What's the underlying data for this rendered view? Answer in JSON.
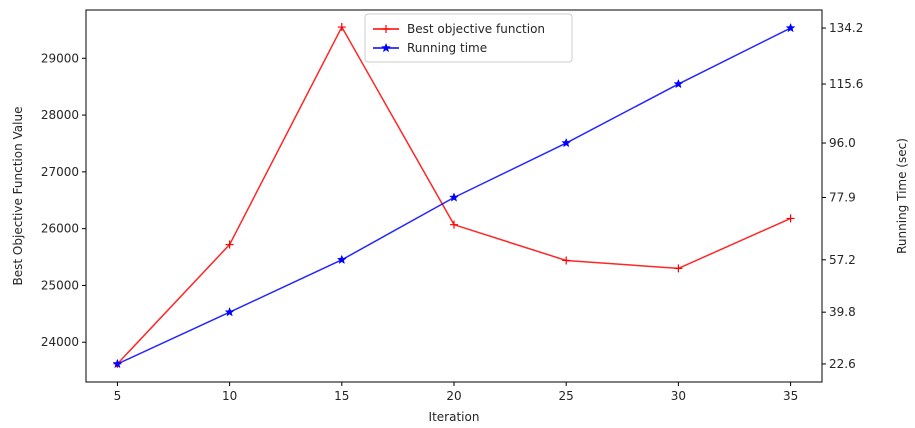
{
  "chart_data": {
    "type": "line",
    "xlabel": "Iteration",
    "ylabel_left": "Best Objective Function Value",
    "ylabel_right": "Running Time (sec)",
    "x": [
      5,
      10,
      15,
      20,
      25,
      30,
      35
    ],
    "xlim": [
      3.6,
      36.4
    ],
    "xticks": [
      "5",
      "10",
      "15",
      "20",
      "25",
      "30",
      "35"
    ],
    "ylim_left": [
      23300,
      29850
    ],
    "yticks_left": [
      24000,
      25000,
      26000,
      27000,
      28000,
      29000
    ],
    "ylim_right": [
      16.6,
      140.2
    ],
    "yticks_right": [
      "22.6",
      "39.8",
      "57.2",
      "77.9",
      "96.0",
      "115.6",
      "134.2"
    ],
    "yticks_right_values": [
      22.6,
      39.8,
      57.2,
      77.9,
      96.0,
      115.6,
      134.2
    ],
    "legend_position": "top-center",
    "series": [
      {
        "name": "Best objective function",
        "axis": "left",
        "color": "#ff0000",
        "marker": "plus",
        "values": [
          23620,
          25720,
          29550,
          26070,
          25440,
          25300,
          26180
        ]
      },
      {
        "name": "Running time",
        "axis": "right",
        "color": "#0000ff",
        "marker": "star",
        "values": [
          22.6,
          39.8,
          57.2,
          77.9,
          96.0,
          115.6,
          134.2
        ]
      }
    ]
  }
}
